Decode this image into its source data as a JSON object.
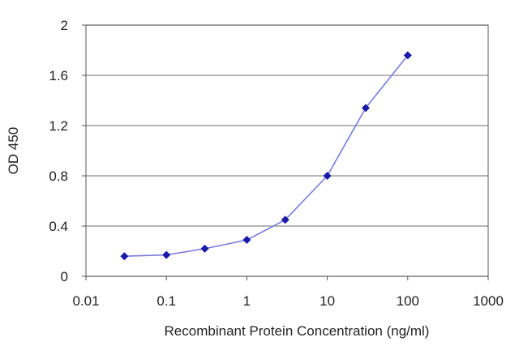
{
  "chart_data": {
    "type": "line",
    "title": "",
    "xlabel": "Recombinant Protein Concentration (ng/ml)",
    "ylabel": "OD 450",
    "x_scale": "log",
    "xlim": [
      0.01,
      1000
    ],
    "ylim": [
      0,
      2
    ],
    "x_ticks": [
      "0.01",
      "0.1",
      "1",
      "10",
      "100",
      "1000"
    ],
    "y_ticks": [
      "0",
      "0.4",
      "0.8",
      "1.2",
      "1.6",
      "2"
    ],
    "grid": "horizontal",
    "legend": "none",
    "series": [
      {
        "x": [
          0.03,
          0.1,
          0.3,
          1,
          3,
          10,
          30,
          100
        ],
        "y": [
          0.16,
          0.17,
          0.22,
          0.29,
          0.45,
          0.8,
          1.34,
          1.76
        ],
        "color": "#1a1aa8",
        "line_color": "#7b7be0"
      }
    ],
    "plot_background": "#ffffff",
    "grid_color": "#8a8a8a"
  }
}
